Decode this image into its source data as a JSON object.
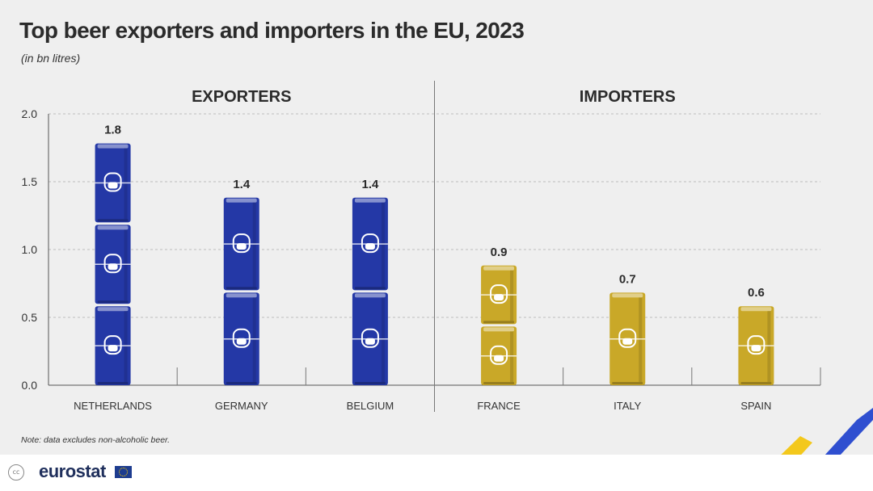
{
  "title": "Top beer exporters and importers in the EU, 2023",
  "subtitle": "(in bn litres)",
  "note": "Note: data excludes non-alcoholic beer.",
  "footer": {
    "logo": "eurostat",
    "cc_icon": "cc",
    "flag_icon": "eu-flag-icon"
  },
  "colors": {
    "exporter_can": "#2438a6",
    "importer_can": "#c9a828",
    "background": "#efefef"
  },
  "chart_data": {
    "type": "bar",
    "ylim": [
      0,
      2.0
    ],
    "yticks": [
      "0.0",
      "0.5",
      "1.0",
      "1.5",
      "2.0"
    ],
    "grid": true,
    "groups": [
      {
        "label": "EXPORTERS",
        "categories": [
          "NETHERLANDS",
          "GERMANY",
          "BELGIUM"
        ],
        "values": [
          1.8,
          1.4,
          1.4
        ],
        "value_labels": [
          "1.8",
          "1.4",
          "1.4"
        ],
        "color": "#2438a6"
      },
      {
        "label": "IMPORTERS",
        "categories": [
          "FRANCE",
          "ITALY",
          "SPAIN"
        ],
        "values": [
          0.9,
          0.7,
          0.6
        ],
        "value_labels": [
          "0.9",
          "0.7",
          "0.6"
        ],
        "color": "#c9a828"
      }
    ]
  }
}
